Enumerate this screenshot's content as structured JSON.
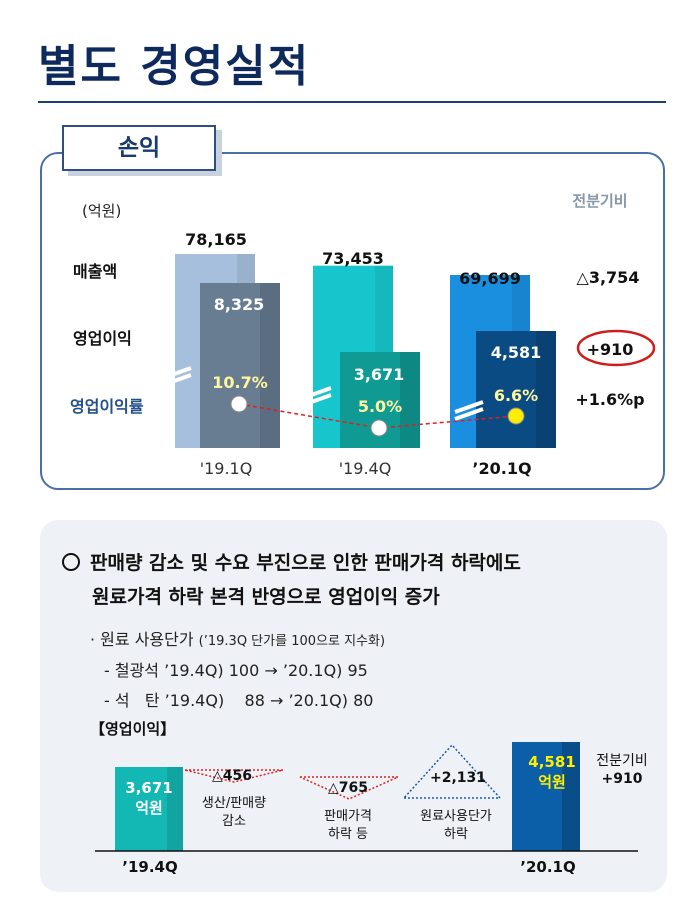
{
  "page": {
    "title": "별도 경영실적"
  },
  "pl_panel": {
    "tab": "손익",
    "unit": "(억원)",
    "compare_header": "전분기비",
    "row_labels": {
      "sales": "매출액",
      "op_income": "영업이익",
      "op_margin": "영업이익률"
    },
    "deltas": {
      "sales": "△3,754",
      "op_income": "+910",
      "op_margin": "+1.6%p"
    }
  },
  "chart_data": [
    {
      "type": "bar",
      "categories": [
        "'19.1Q",
        "'19.4Q",
        "'20.1Q"
      ],
      "category_labels": [
        "'19.1Q",
        "'19.4Q",
        "’20.1Q"
      ],
      "series": [
        {
          "name": "매출액",
          "values": [
            78165,
            73453,
            69699
          ],
          "labels": [
            "78,165",
            "73,453",
            "69,699"
          ],
          "colors": [
            "#a6bfdc",
            "#16c6cc",
            "#1a8fe0"
          ]
        },
        {
          "name": "영업이익",
          "values": [
            8325,
            3671,
            4581
          ],
          "labels": [
            "8,325",
            "3,671",
            "4,581"
          ],
          "colors": [
            "#687d92",
            "#0f9b94",
            "#0b4b83"
          ]
        },
        {
          "name": "영업이익률",
          "values": [
            10.7,
            5.0,
            6.6
          ],
          "labels": [
            "10.7%",
            "5.0%",
            "6.6%"
          ],
          "colors": [
            "#ffffff",
            "#ffffff",
            "#ffee00"
          ]
        }
      ]
    },
    {
      "type": "bar",
      "title": "【영업이익】",
      "categories": [
        "'19.4Q",
        "생산/판매량 감소",
        "판매가격 하락 등",
        "원료사용단가 하락",
        "'20.1Q"
      ],
      "values": [
        3671,
        -456,
        -765,
        2131,
        4581
      ],
      "labels": [
        "3,671\n억원",
        "△456",
        "△765",
        "+2,131",
        "4,581\n억원"
      ]
    }
  ],
  "summary": {
    "headline_line1": "판매량 감소 및 수요 부진으로 인한 판매가격 하락에도",
    "headline_line2": "원료가격 하락 본격 반영으로 영업이익 증가",
    "sub_bullet": "· 원료 사용단가",
    "sub_note": "(’19.3Q 단가를 100으로 지수화)",
    "items": [
      "- 철광석 ’19.4Q) 100 → ’20.1Q) 95",
      "- 석   탄 ’19.4Q)    88 → ’20.1Q) 80"
    ]
  },
  "waterfall": {
    "header": "【영업이익】",
    "start_period": "’19.4Q",
    "end_period": "’20.1Q",
    "start_line1": "3,671",
    "start_line2": "억원",
    "end_line1": "4,581",
    "end_line2": "억원",
    "factors": [
      {
        "value": "△456",
        "label_line1": "생산/판매량",
        "label_line2": "감소"
      },
      {
        "value": "△765",
        "label_line1": "판매가격",
        "label_line2": "하락 등"
      },
      {
        "value": "+2,131",
        "label_line1": "원료사용단가",
        "label_line2": "하락"
      }
    ],
    "compare_header": "전분기비",
    "compare_value": "+910"
  }
}
